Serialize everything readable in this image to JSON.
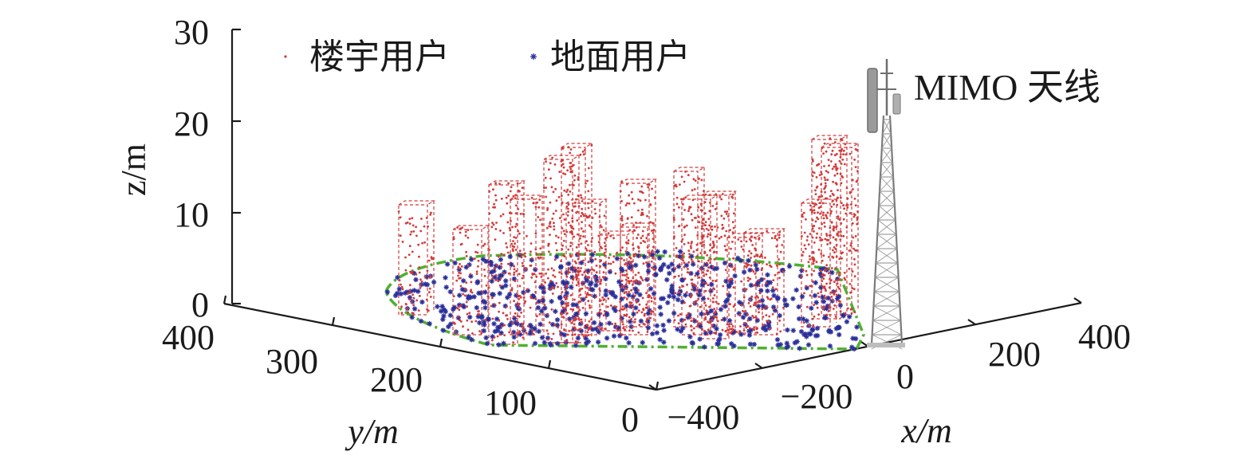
{
  "chart_data": {
    "type": "scatter",
    "dimensions": "3d",
    "xlabel": "x/m",
    "ylabel": "y/m",
    "zlabel": "z/m",
    "x_ticks": [
      "−400",
      "−200",
      "0",
      "200",
      "400"
    ],
    "y_ticks": [
      "0",
      "100",
      "200",
      "300",
      "400"
    ],
    "z_ticks": [
      "0",
      "10",
      "20",
      "30"
    ],
    "xlim": [
      -400,
      400
    ],
    "ylim": [
      0,
      400
    ],
    "zlim": [
      0,
      30
    ],
    "legend": {
      "placement": "top-left",
      "entries": [
        {
          "label": "楼宇用户",
          "marker": "dot",
          "color": "#d23a3a"
        },
        {
          "label": "地面用户",
          "marker": "asterisk",
          "color": "#2a2f9a"
        }
      ]
    },
    "annotation": "MIMO 天线",
    "colors": {
      "building_users": "#d23a3a",
      "ground_users": "#2a2f9a",
      "ground_boundary": "#4fb030",
      "antenna": "#808080"
    },
    "series": [
      {
        "name": "楼宇用户",
        "kind": "building",
        "marker": "dot"
      },
      {
        "name": "地面用户",
        "kind": "ground",
        "marker": "asterisk"
      }
    ]
  }
}
